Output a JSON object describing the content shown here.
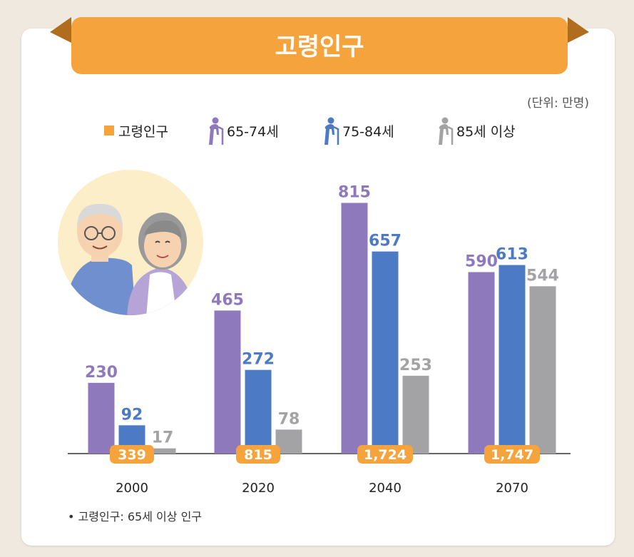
{
  "title": "고령인구",
  "unit_note": "(단위: 만명)",
  "footnote": "• 고령인구: 65세 이상 인구",
  "legend": [
    {
      "label": "고령인구",
      "icon": "square-icon"
    },
    {
      "label": "65-74세",
      "icon": "elderly-cane-icon"
    },
    {
      "label": "75-84세",
      "icon": "elderly-cane-icon"
    },
    {
      "label": "85세 이상",
      "icon": "elderly-cane-icon"
    }
  ],
  "colors": {
    "accent": "#f5a33c",
    "s65_74": "#8f79bd",
    "s75_84": "#4d7ac4",
    "s85": "#a3a3a6",
    "background": "#efe9df"
  },
  "chart_data": {
    "type": "bar",
    "categories": [
      "2000",
      "2020",
      "2040",
      "2070"
    ],
    "series": [
      {
        "name": "65-74세",
        "values": [
          230,
          465,
          815,
          590
        ]
      },
      {
        "name": "75-84세",
        "values": [
          92,
          272,
          657,
          613
        ]
      },
      {
        "name": "85세 이상",
        "values": [
          17,
          78,
          253,
          544
        ]
      }
    ],
    "totals": {
      "name": "고령인구",
      "values": [
        339,
        815,
        1724,
        1747
      ],
      "labels": [
        "339",
        "815",
        "1,724",
        "1,747"
      ]
    },
    "ylim": [
      0,
      830
    ],
    "grid": false,
    "legend_position": "top"
  }
}
